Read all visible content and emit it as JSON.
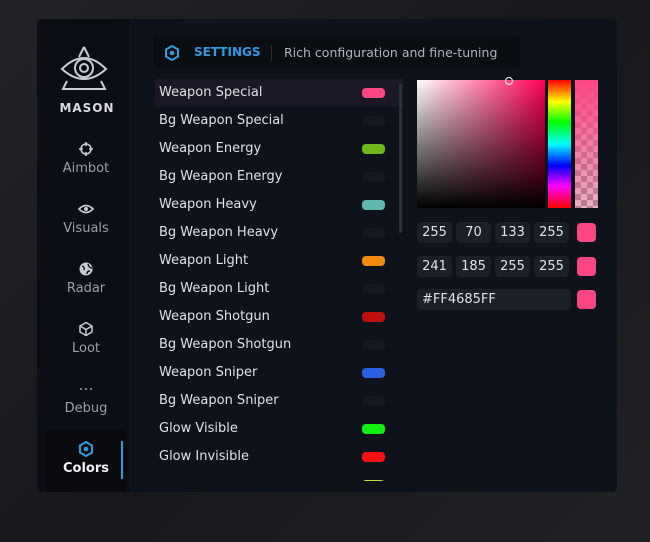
{
  "brand": "MASON",
  "nav": [
    {
      "label": "Aimbot",
      "icon": "crosshair-icon"
    },
    {
      "label": "Visuals",
      "icon": "eye-icon"
    },
    {
      "label": "Radar",
      "icon": "globe-icon"
    },
    {
      "label": "Loot",
      "icon": "cube-icon"
    },
    {
      "label": "Debug",
      "icon": "dots-icon"
    },
    {
      "label": "Colors",
      "icon": "gear-icon",
      "active": true
    }
  ],
  "header": {
    "title": "SETTINGS",
    "subtitle": "Rich configuration and fine-tuning"
  },
  "accent": "#2f9be0",
  "colors": [
    {
      "label": "Weapon Special",
      "color": "#ff4685"
    },
    {
      "label": "Bg Weapon Special",
      "color": "#15181d"
    },
    {
      "label": "Weapon Energy",
      "color": "#6fb81a"
    },
    {
      "label": "Bg Weapon Energy",
      "color": "#15181d"
    },
    {
      "label": "Weapon Heavy",
      "color": "#5fb8b0"
    },
    {
      "label": "Bg Weapon Heavy",
      "color": "#15181d"
    },
    {
      "label": "Weapon Light",
      "color": "#f08a10"
    },
    {
      "label": "Bg Weapon Light",
      "color": "#15181d"
    },
    {
      "label": "Weapon Shotgun",
      "color": "#c01010"
    },
    {
      "label": "Bg Weapon Shotgun",
      "color": "#15181d"
    },
    {
      "label": "Weapon Sniper",
      "color": "#2a5fe0"
    },
    {
      "label": "Bg Weapon Sniper",
      "color": "#15181d"
    },
    {
      "label": "Glow Visible",
      "color": "#10f010"
    },
    {
      "label": "Glow Invisible",
      "color": "#f81010"
    },
    {
      "label": "",
      "color": "#c8d838"
    }
  ],
  "picker": {
    "rgba": [
      "255",
      "70",
      "133",
      "255"
    ],
    "hsva": [
      "241",
      "185",
      "255",
      "255"
    ],
    "hex": "#FF4685FF",
    "color": "#ff4685"
  }
}
